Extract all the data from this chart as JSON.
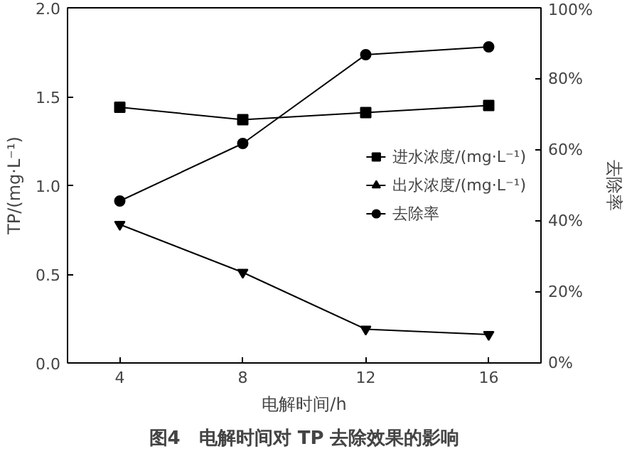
{
  "chart_data": {
    "type": "line",
    "title": "图4　电解时间对 TP 去除效果的影响",
    "xlabel": "电解时间/h",
    "ylabel": "TP/(mg·L⁻¹)",
    "y2label": "去除率",
    "x": [
      4,
      8,
      12,
      16
    ],
    "series": [
      {
        "name": "进水浓度/(mg·L⁻¹)",
        "color": "#000000",
        "marker": "square",
        "values": [
          1.44,
          1.37,
          1.41,
          1.45
        ]
      },
      {
        "name": "出水浓度/(mg·L⁻¹)",
        "color": "#000000",
        "marker": "triangle",
        "values": [
          0.78,
          0.51,
          0.19,
          0.16
        ]
      },
      {
        "name": "去除率",
        "color": "#000000",
        "marker": "circle",
        "axis": "y2",
        "values": [
          45.6,
          61.8,
          86.8,
          89.0
        ]
      }
    ],
    "xlim": [
      2.3,
      17.7
    ],
    "xticks": [
      4,
      8,
      12,
      16
    ],
    "ylim": [
      0,
      2
    ],
    "yticks": [
      {
        "value": 0,
        "label": "0.0"
      },
      0.5,
      {
        "value": 1,
        "label": "1.0"
      },
      1.5,
      {
        "value": 2,
        "label": "2.0"
      }
    ],
    "y2lim": [
      0,
      100
    ],
    "y2ticks": [
      {
        "value": 0,
        "label": "0%"
      },
      {
        "value": 20,
        "label": "20%"
      },
      {
        "value": 40,
        "label": "40%"
      },
      {
        "value": 60,
        "label": "60%"
      },
      {
        "value": 80,
        "label": "80%"
      },
      {
        "value": 100,
        "label": "100%"
      }
    ],
    "legend": "right",
    "grid": false
  }
}
